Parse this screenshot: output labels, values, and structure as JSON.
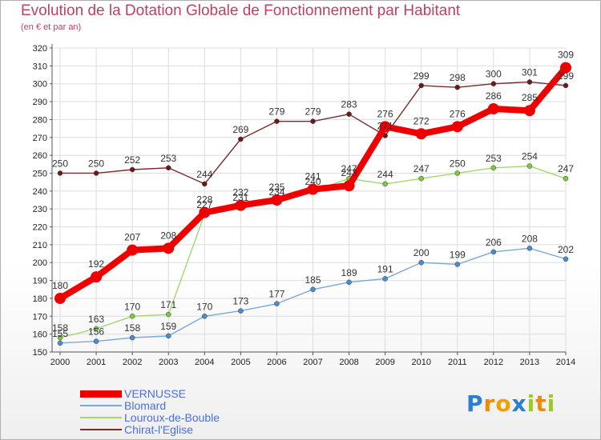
{
  "title": "Evolution de la Dotation Globale de Fonctionnement par Habitant",
  "subtitle": "(en € et par an)",
  "logo_text": "Proxiti",
  "colors": {
    "title": "#c04060",
    "legend_text": "#4a6ee0",
    "grid": "#dddddd",
    "axis": "#555555"
  },
  "chart_data": {
    "type": "line",
    "x": [
      "2000",
      "2001",
      "2002",
      "2003",
      "2004",
      "2005",
      "2006",
      "2007",
      "2008",
      "2009",
      "2010",
      "2011",
      "2012",
      "2013",
      "2014"
    ],
    "ylim": [
      150,
      320
    ],
    "yticks": [
      150,
      160,
      170,
      180,
      190,
      200,
      210,
      220,
      230,
      240,
      250,
      260,
      270,
      280,
      290,
      300,
      310,
      320
    ],
    "grid": true,
    "legend_position": "bottom-left",
    "series": [
      {
        "name": "VERNUSSE",
        "color": "#ee0000",
        "stroke": "#ee0000",
        "values": [
          180,
          192,
          207,
          208,
          228,
          232,
          235,
          241,
          243,
          276,
          272,
          276,
          286,
          285,
          309
        ]
      },
      {
        "name": "Blomard",
        "color": "#4a8fcc",
        "stroke": "#7aa8d8",
        "values": [
          155,
          156,
          158,
          159,
          170,
          173,
          177,
          185,
          189,
          191,
          200,
          199,
          206,
          208,
          202
        ]
      },
      {
        "name": "Louroux-de-Bouble",
        "color": "#7acc3a",
        "stroke": "#a0d870",
        "values": [
          158,
          163,
          170,
          171,
          227,
          231,
          234,
          240,
          247,
          244,
          247,
          250,
          253,
          254,
          247
        ]
      },
      {
        "name": "Chirat-l'Eglise",
        "color": "#6a1a1a",
        "stroke": "#7a2a2a",
        "values": [
          250,
          250,
          252,
          253,
          244,
          269,
          279,
          279,
          283,
          271,
          299,
          298,
          300,
          301,
          299
        ]
      }
    ]
  }
}
